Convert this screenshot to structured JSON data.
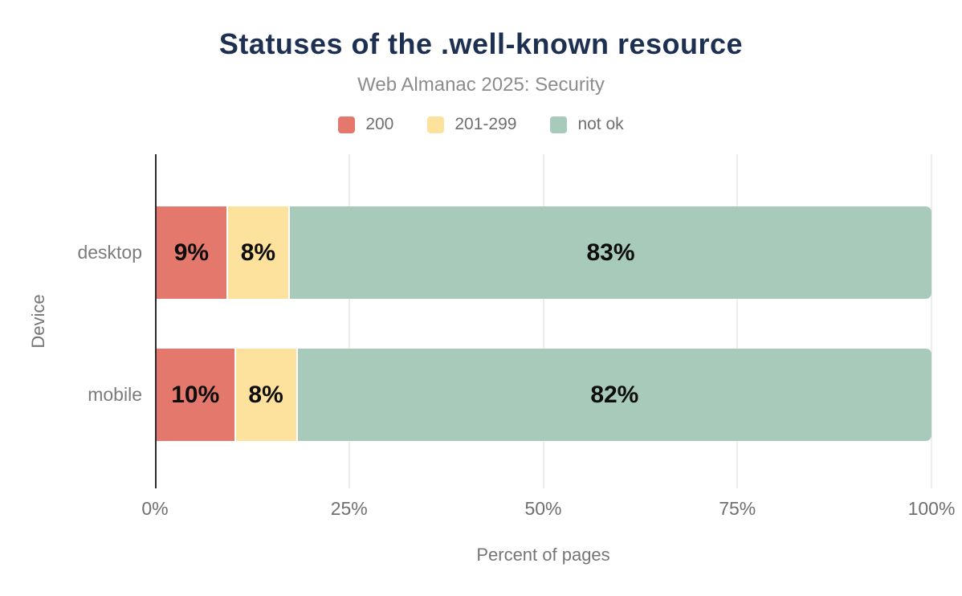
{
  "header": {
    "title": "Statuses of the .well-known resource",
    "subtitle": "Web Almanac 2025: Security"
  },
  "legend": [
    {
      "label": "200",
      "color": "#e5786d"
    },
    {
      "label": "201-299",
      "color": "#fce29c"
    },
    {
      "label": "not ok",
      "color": "#a8cabb"
    }
  ],
  "x_axis": {
    "title": "Percent of pages",
    "ticks": [
      "0%",
      "25%",
      "50%",
      "75%",
      "100%"
    ]
  },
  "y_axis": {
    "title": "Device"
  },
  "colors": {
    "title_text": "#1e3051",
    "subtitle_text": "#8c8c8c",
    "axis_text": "#6f6f6f",
    "gridline": "#ededed",
    "axis_line": "#2b2b2b",
    "bar_value_text": "#0d0d0d"
  },
  "chart_data": {
    "type": "bar",
    "orientation": "horizontal",
    "stacked": true,
    "title": "Statuses of the .well-known resource",
    "subtitle": "Web Almanac 2025: Security",
    "xlabel": "Percent of pages",
    "ylabel": "Device",
    "xlim": [
      0,
      100
    ],
    "x_tick_labels": [
      "0%",
      "25%",
      "50%",
      "75%",
      "100%"
    ],
    "grid": "vertical",
    "legend_position": "top",
    "categories": [
      "desktop",
      "mobile"
    ],
    "series": [
      {
        "name": "200",
        "color": "#e5786d",
        "values": [
          9,
          10
        ]
      },
      {
        "name": "201-299",
        "color": "#fce29c",
        "values": [
          8,
          8
        ]
      },
      {
        "name": "not ok",
        "color": "#a8cabb",
        "values": [
          83,
          82
        ]
      }
    ],
    "rows": [
      {
        "category": "desktop",
        "segments": [
          {
            "series": "200",
            "value": 9,
            "label": "9%",
            "color": "#e5786d"
          },
          {
            "series": "201-299",
            "value": 8,
            "label": "8%",
            "color": "#fce29c"
          },
          {
            "series": "not ok",
            "value": 83,
            "label": "83%",
            "color": "#a8cabb"
          }
        ]
      },
      {
        "category": "mobile",
        "segments": [
          {
            "series": "200",
            "value": 10,
            "label": "10%",
            "color": "#e5786d"
          },
          {
            "series": "201-299",
            "value": 8,
            "label": "8%",
            "color": "#fce29c"
          },
          {
            "series": "not ok",
            "value": 82,
            "label": "82%",
            "color": "#a8cabb"
          }
        ]
      }
    ]
  }
}
